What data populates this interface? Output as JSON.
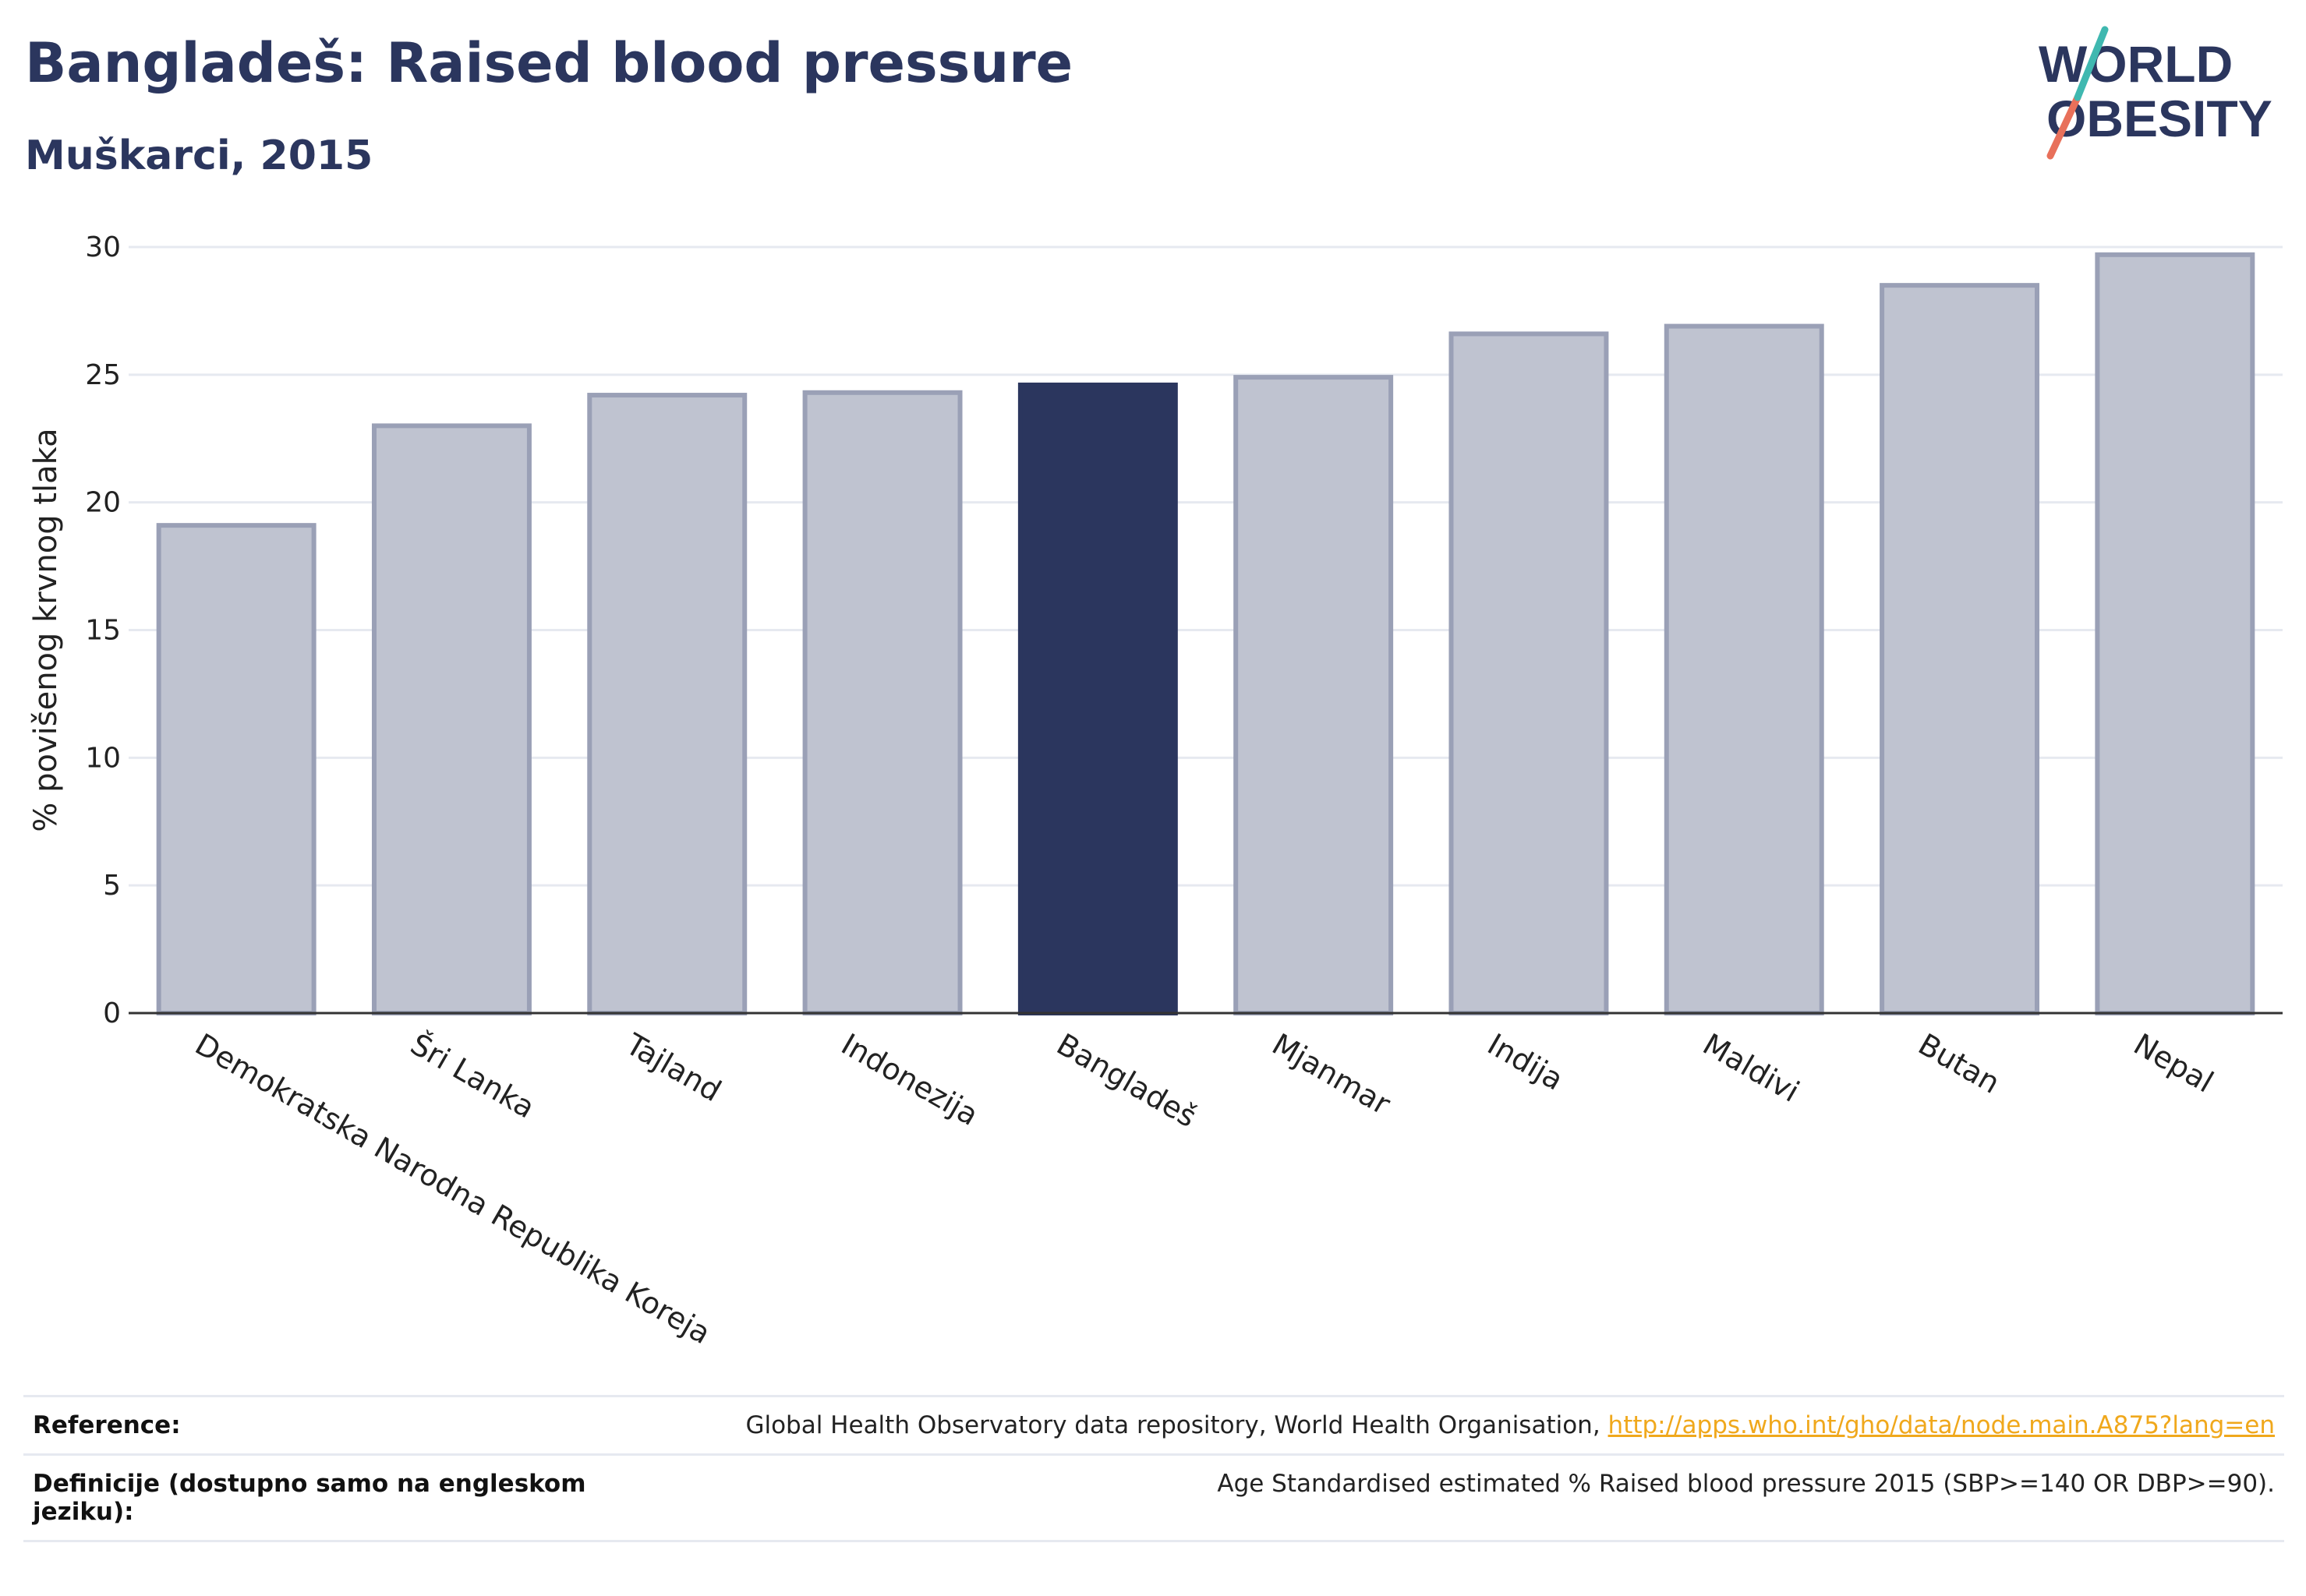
{
  "header": {
    "title": "Bangladeš: Raised blood pressure",
    "subtitle": "Muškarci, 2015"
  },
  "logo": {
    "line1": "WORLD",
    "line2": "OBESITY"
  },
  "chart_data": {
    "type": "bar",
    "title": "Bangladeš: Raised blood pressure",
    "subtitle": "Muškarci, 2015",
    "xlabel": "",
    "ylabel": "% povišenog krvnog tlaka",
    "categories": [
      "Demokratska Narodna Republika Koreja",
      "Šri Lanka",
      "Tajland",
      "Indonezija",
      "Bangladeš",
      "Mjanmar",
      "Indija",
      "Maldivi",
      "Butan",
      "Nepal"
    ],
    "values": [
      19.1,
      23.0,
      24.2,
      24.3,
      24.6,
      24.9,
      26.6,
      26.9,
      28.5,
      29.7
    ],
    "highlight": "Bangladeš",
    "ylim": [
      0,
      30
    ],
    "yticks": [
      0,
      5,
      10,
      15,
      20,
      25,
      30
    ],
    "grid": true,
    "colors": {
      "bar": "#bfc3d0",
      "bar_edge": "#9aa0b6",
      "highlight": "#2b365e",
      "grid": "#e6e9f0",
      "axis": "#333333"
    }
  },
  "footer": {
    "reference_label": "Reference:",
    "reference_text": "Global Health Observatory data repository, World Health Organisation, ",
    "reference_link": "http://apps.who.int/gho/data/node.main.A875?lang=en",
    "definition_label": "Definicije (dostupno samo na engleskom jeziku):",
    "definition_text": "Age Standardised estimated % Raised blood pressure 2015 (SBP>=140 OR DBP>=90)."
  }
}
